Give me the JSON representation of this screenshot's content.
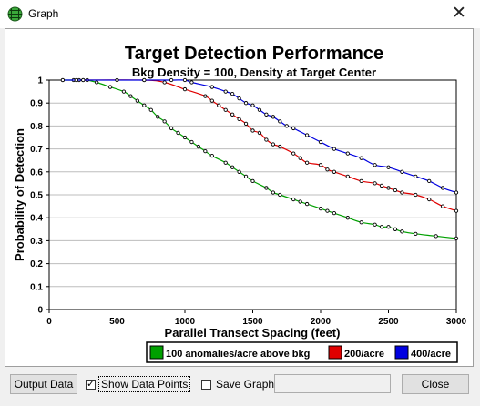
{
  "window": {
    "title": "Graph",
    "icon": "globe-grid-icon",
    "close_glyph": "✕"
  },
  "controls": {
    "output_data_label": "Output Data",
    "show_points_label": "Show Data Points",
    "show_points_checked": true,
    "save_graph_label": "Save Graph",
    "save_graph_checked": false,
    "filename_value": "",
    "close_label": "Close"
  },
  "chart_data": {
    "type": "line",
    "title": "Target Detection Performance",
    "subtitle": "Bkg Density = 100, Density at Target Center",
    "xlabel": "Parallel Transect Spacing (feet)",
    "ylabel": "Probability of Detection",
    "xlim": [
      0,
      3000
    ],
    "ylim": [
      0,
      1
    ],
    "x_ticks": [
      "0",
      "500",
      "1000",
      "1500",
      "2000",
      "2500",
      "3000"
    ],
    "y_ticks": [
      "0",
      "0.1",
      "0.2",
      "0.3",
      "0.4",
      "0.5",
      "0.6",
      "0.7",
      "0.8",
      "0.9",
      "1"
    ],
    "grid": "horizontal",
    "legend_position": "bottom",
    "series": [
      {
        "name": "100 anomalies/acre above bkg",
        "color": "#00a000",
        "x": [
          100,
          180,
          220,
          280,
          350,
          450,
          550,
          600,
          650,
          700,
          750,
          800,
          850,
          900,
          950,
          1000,
          1050,
          1100,
          1150,
          1200,
          1300,
          1350,
          1400,
          1450,
          1500,
          1600,
          1650,
          1700,
          1800,
          1850,
          1900,
          2000,
          2050,
          2100,
          2200,
          2300,
          2400,
          2450,
          2500,
          2550,
          2600,
          2700,
          2850,
          3000
        ],
        "y": [
          1.0,
          1.0,
          1.0,
          1.0,
          0.99,
          0.97,
          0.95,
          0.93,
          0.91,
          0.89,
          0.87,
          0.84,
          0.82,
          0.79,
          0.77,
          0.75,
          0.73,
          0.71,
          0.69,
          0.67,
          0.64,
          0.62,
          0.6,
          0.58,
          0.56,
          0.53,
          0.51,
          0.5,
          0.48,
          0.47,
          0.46,
          0.44,
          0.43,
          0.42,
          0.4,
          0.38,
          0.37,
          0.36,
          0.36,
          0.35,
          0.34,
          0.33,
          0.32,
          0.31
        ]
      },
      {
        "name": "200/acre",
        "color": "#e00000",
        "x": [
          250,
          700,
          850,
          1000,
          1150,
          1200,
          1250,
          1300,
          1350,
          1400,
          1450,
          1500,
          1550,
          1600,
          1650,
          1700,
          1800,
          1850,
          1900,
          2000,
          2050,
          2100,
          2200,
          2300,
          2400,
          2450,
          2500,
          2550,
          2600,
          2700,
          2800,
          2900,
          3000
        ],
        "y": [
          1.0,
          1.0,
          0.99,
          0.96,
          0.93,
          0.91,
          0.89,
          0.87,
          0.85,
          0.83,
          0.81,
          0.78,
          0.77,
          0.74,
          0.72,
          0.71,
          0.68,
          0.66,
          0.64,
          0.63,
          0.61,
          0.6,
          0.58,
          0.56,
          0.55,
          0.54,
          0.53,
          0.52,
          0.51,
          0.5,
          0.48,
          0.45,
          0.43
        ]
      },
      {
        "name": "400/acre",
        "color": "#0000e0",
        "x": [
          100,
          200,
          250,
          500,
          700,
          900,
          1000,
          1050,
          1200,
          1300,
          1350,
          1400,
          1450,
          1500,
          1550,
          1600,
          1650,
          1700,
          1750,
          1800,
          1900,
          2000,
          2100,
          2200,
          2300,
          2400,
          2500,
          2600,
          2700,
          2800,
          2900,
          3000
        ],
        "y": [
          1.0,
          1.0,
          1.0,
          1.0,
          1.0,
          1.0,
          1.0,
          0.99,
          0.97,
          0.95,
          0.94,
          0.92,
          0.9,
          0.89,
          0.87,
          0.85,
          0.84,
          0.82,
          0.8,
          0.79,
          0.76,
          0.73,
          0.7,
          0.68,
          0.66,
          0.63,
          0.62,
          0.6,
          0.58,
          0.56,
          0.53,
          0.51
        ]
      }
    ]
  }
}
